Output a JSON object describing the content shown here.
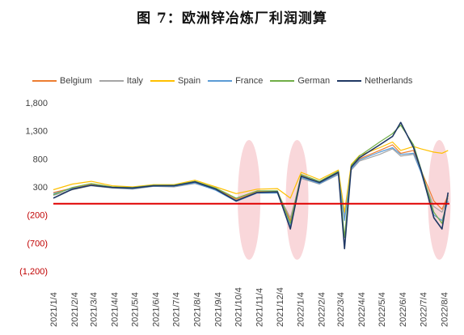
{
  "title": "图 7：欧洲锌冶炼厂利润测算",
  "colors": {
    "Belgium": "#ED7D31",
    "Italy": "#A5A5A5",
    "Spain": "#FFC000",
    "France": "#5B9BD5",
    "German": "#70AD47",
    "Netherlands": "#203864",
    "zero_line": "#E00000",
    "negative_tick": "#C00000",
    "highlight": "#F4B6BC"
  },
  "chart_data": {
    "type": "line",
    "x_tick_labels": [
      "2021/1/4",
      "2021/2/4",
      "2021/3/4",
      "2021/4/4",
      "2021/5/4",
      "2021/6/4",
      "2021/7/4",
      "2021/8/4",
      "2021/9/4",
      "2021/10/4",
      "2021/11/4",
      "2021/12/4",
      "2022/1/4",
      "2022/2/4",
      "2022/3/4",
      "2022/4/4",
      "2022/5/4",
      "2022/6/4",
      "2022/7/4",
      "2022/8/4"
    ],
    "y_ticks": [
      {
        "value": 1800,
        "label": "1,800"
      },
      {
        "value": 1300,
        "label": "1,300"
      },
      {
        "value": 800,
        "label": "800"
      },
      {
        "value": 300,
        "label": "300"
      },
      {
        "value": -200,
        "label": "(200)"
      },
      {
        "value": -700,
        "label": "(700)"
      },
      {
        "value": -1200,
        "label": "(1,200)"
      }
    ],
    "ylim": [
      -1200,
      1800
    ],
    "zero_line_value": 0,
    "highlights_around": [
      "2021/10/20",
      "2021/12/30",
      "2022/7/28"
    ],
    "legend": [
      "Belgium",
      "Italy",
      "Spain",
      "France",
      "German",
      "Netherlands"
    ],
    "series": [
      {
        "name": "Belgium",
        "points": [
          [
            "2021/1/4",
            200
          ],
          [
            "2021/2/1",
            280
          ],
          [
            "2021/3/1",
            340
          ],
          [
            "2021/4/1",
            290
          ],
          [
            "2021/5/1",
            280
          ],
          [
            "2021/6/1",
            320
          ],
          [
            "2021/7/1",
            320
          ],
          [
            "2021/8/1",
            380
          ],
          [
            "2021/9/1",
            270
          ],
          [
            "2021/10/1",
            80
          ],
          [
            "2021/11/1",
            210
          ],
          [
            "2021/12/1",
            220
          ],
          [
            "2021/12/20",
            -300
          ],
          [
            "2022/1/5",
            500
          ],
          [
            "2022/2/1",
            380
          ],
          [
            "2022/3/1",
            550
          ],
          [
            "2022/3/10",
            -250
          ],
          [
            "2022/3/20",
            650
          ],
          [
            "2022/4/1",
            800
          ],
          [
            "2022/5/1",
            950
          ],
          [
            "2022/5/20",
            1050
          ],
          [
            "2022/6/1",
            900
          ],
          [
            "2022/6/20",
            950
          ],
          [
            "2022/7/1",
            600
          ],
          [
            "2022/7/20",
            50
          ],
          [
            "2022/8/1",
            -100
          ],
          [
            "2022/8/10",
            150
          ]
        ]
      },
      {
        "name": "Italy",
        "points": [
          [
            "2021/1/4",
            150
          ],
          [
            "2021/2/1",
            250
          ],
          [
            "2021/3/1",
            320
          ],
          [
            "2021/4/1",
            280
          ],
          [
            "2021/5/1",
            260
          ],
          [
            "2021/6/1",
            310
          ],
          [
            "2021/7/1",
            300
          ],
          [
            "2021/8/1",
            360
          ],
          [
            "2021/9/1",
            250
          ],
          [
            "2021/10/1",
            60
          ],
          [
            "2021/11/1",
            200
          ],
          [
            "2021/12/1",
            200
          ],
          [
            "2021/12/20",
            -250
          ],
          [
            "2022/1/5",
            450
          ],
          [
            "2022/2/1",
            350
          ],
          [
            "2022/3/1",
            520
          ],
          [
            "2022/3/10",
            -200
          ],
          [
            "2022/3/20",
            600
          ],
          [
            "2022/4/1",
            760
          ],
          [
            "2022/5/1",
            880
          ],
          [
            "2022/5/20",
            980
          ],
          [
            "2022/6/1",
            850
          ],
          [
            "2022/6/20",
            880
          ],
          [
            "2022/7/1",
            560
          ],
          [
            "2022/7/20",
            -50
          ],
          [
            "2022/8/1",
            -150
          ],
          [
            "2022/8/10",
            100
          ]
        ]
      },
      {
        "name": "Spain",
        "points": [
          [
            "2021/1/4",
            250
          ],
          [
            "2021/2/1",
            350
          ],
          [
            "2021/3/1",
            400
          ],
          [
            "2021/4/1",
            320
          ],
          [
            "2021/5/1",
            300
          ],
          [
            "2021/6/1",
            340
          ],
          [
            "2021/7/1",
            340
          ],
          [
            "2021/8/1",
            420
          ],
          [
            "2021/9/1",
            300
          ],
          [
            "2021/10/1",
            180
          ],
          [
            "2021/11/1",
            260
          ],
          [
            "2021/12/1",
            270
          ],
          [
            "2021/12/20",
            100
          ],
          [
            "2022/1/5",
            560
          ],
          [
            "2022/2/1",
            430
          ],
          [
            "2022/3/1",
            600
          ],
          [
            "2022/3/10",
            -150
          ],
          [
            "2022/3/20",
            700
          ],
          [
            "2022/4/1",
            860
          ],
          [
            "2022/5/1",
            1000
          ],
          [
            "2022/5/20",
            1100
          ],
          [
            "2022/6/1",
            950
          ],
          [
            "2022/6/20",
            1020
          ],
          [
            "2022/7/1",
            980
          ],
          [
            "2022/7/20",
            920
          ],
          [
            "2022/8/1",
            900
          ],
          [
            "2022/8/10",
            950
          ]
        ]
      },
      {
        "name": "France",
        "points": [
          [
            "2021/1/4",
            180
          ],
          [
            "2021/2/1",
            270
          ],
          [
            "2021/3/1",
            330
          ],
          [
            "2021/4/1",
            285
          ],
          [
            "2021/5/1",
            270
          ],
          [
            "2021/6/1",
            315
          ],
          [
            "2021/7/1",
            310
          ],
          [
            "2021/8/1",
            370
          ],
          [
            "2021/9/1",
            240
          ],
          [
            "2021/10/1",
            40
          ],
          [
            "2021/11/1",
            190
          ],
          [
            "2021/12/1",
            190
          ],
          [
            "2021/12/20",
            -400
          ],
          [
            "2022/1/5",
            470
          ],
          [
            "2022/2/1",
            360
          ],
          [
            "2022/3/1",
            530
          ],
          [
            "2022/3/10",
            -300
          ],
          [
            "2022/3/20",
            620
          ],
          [
            "2022/4/1",
            780
          ],
          [
            "2022/5/1",
            920
          ],
          [
            "2022/5/20",
            1000
          ],
          [
            "2022/6/1",
            880
          ],
          [
            "2022/6/20",
            900
          ],
          [
            "2022/7/1",
            560
          ],
          [
            "2022/7/20",
            -200
          ],
          [
            "2022/8/1",
            -300
          ],
          [
            "2022/8/10",
            50
          ]
        ]
      },
      {
        "name": "German",
        "points": [
          [
            "2021/1/4",
            160
          ],
          [
            "2021/2/1",
            290
          ],
          [
            "2021/3/1",
            360
          ],
          [
            "2021/4/1",
            300
          ],
          [
            "2021/5/1",
            290
          ],
          [
            "2021/6/1",
            330
          ],
          [
            "2021/7/1",
            330
          ],
          [
            "2021/8/1",
            400
          ],
          [
            "2021/9/1",
            280
          ],
          [
            "2021/10/1",
            100
          ],
          [
            "2021/11/1",
            230
          ],
          [
            "2021/12/1",
            230
          ],
          [
            "2021/12/20",
            -350
          ],
          [
            "2022/1/5",
            520
          ],
          [
            "2022/2/1",
            400
          ],
          [
            "2022/3/1",
            580
          ],
          [
            "2022/3/10",
            -600
          ],
          [
            "2022/3/20",
            680
          ],
          [
            "2022/4/1",
            850
          ],
          [
            "2022/5/1",
            1100
          ],
          [
            "2022/5/20",
            1250
          ],
          [
            "2022/6/1",
            1400
          ],
          [
            "2022/6/20",
            1050
          ],
          [
            "2022/7/1",
            620
          ],
          [
            "2022/7/20",
            -150
          ],
          [
            "2022/8/1",
            -350
          ],
          [
            "2022/8/10",
            150
          ]
        ]
      },
      {
        "name": "Netherlands",
        "points": [
          [
            "2021/1/4",
            100
          ],
          [
            "2021/2/1",
            260
          ],
          [
            "2021/3/1",
            330
          ],
          [
            "2021/4/1",
            290
          ],
          [
            "2021/5/1",
            280
          ],
          [
            "2021/6/1",
            320
          ],
          [
            "2021/7/1",
            320
          ],
          [
            "2021/8/1",
            390
          ],
          [
            "2021/9/1",
            260
          ],
          [
            "2021/10/1",
            50
          ],
          [
            "2021/11/1",
            200
          ],
          [
            "2021/12/1",
            210
          ],
          [
            "2021/12/20",
            -450
          ],
          [
            "2022/1/5",
            490
          ],
          [
            "2022/2/1",
            380
          ],
          [
            "2022/3/1",
            560
          ],
          [
            "2022/3/10",
            -800
          ],
          [
            "2022/3/20",
            650
          ],
          [
            "2022/4/1",
            820
          ],
          [
            "2022/5/1",
            1050
          ],
          [
            "2022/5/20",
            1200
          ],
          [
            "2022/6/1",
            1450
          ],
          [
            "2022/6/20",
            1000
          ],
          [
            "2022/7/1",
            600
          ],
          [
            "2022/7/20",
            -250
          ],
          [
            "2022/8/1",
            -450
          ],
          [
            "2022/8/10",
            200
          ]
        ]
      }
    ]
  }
}
